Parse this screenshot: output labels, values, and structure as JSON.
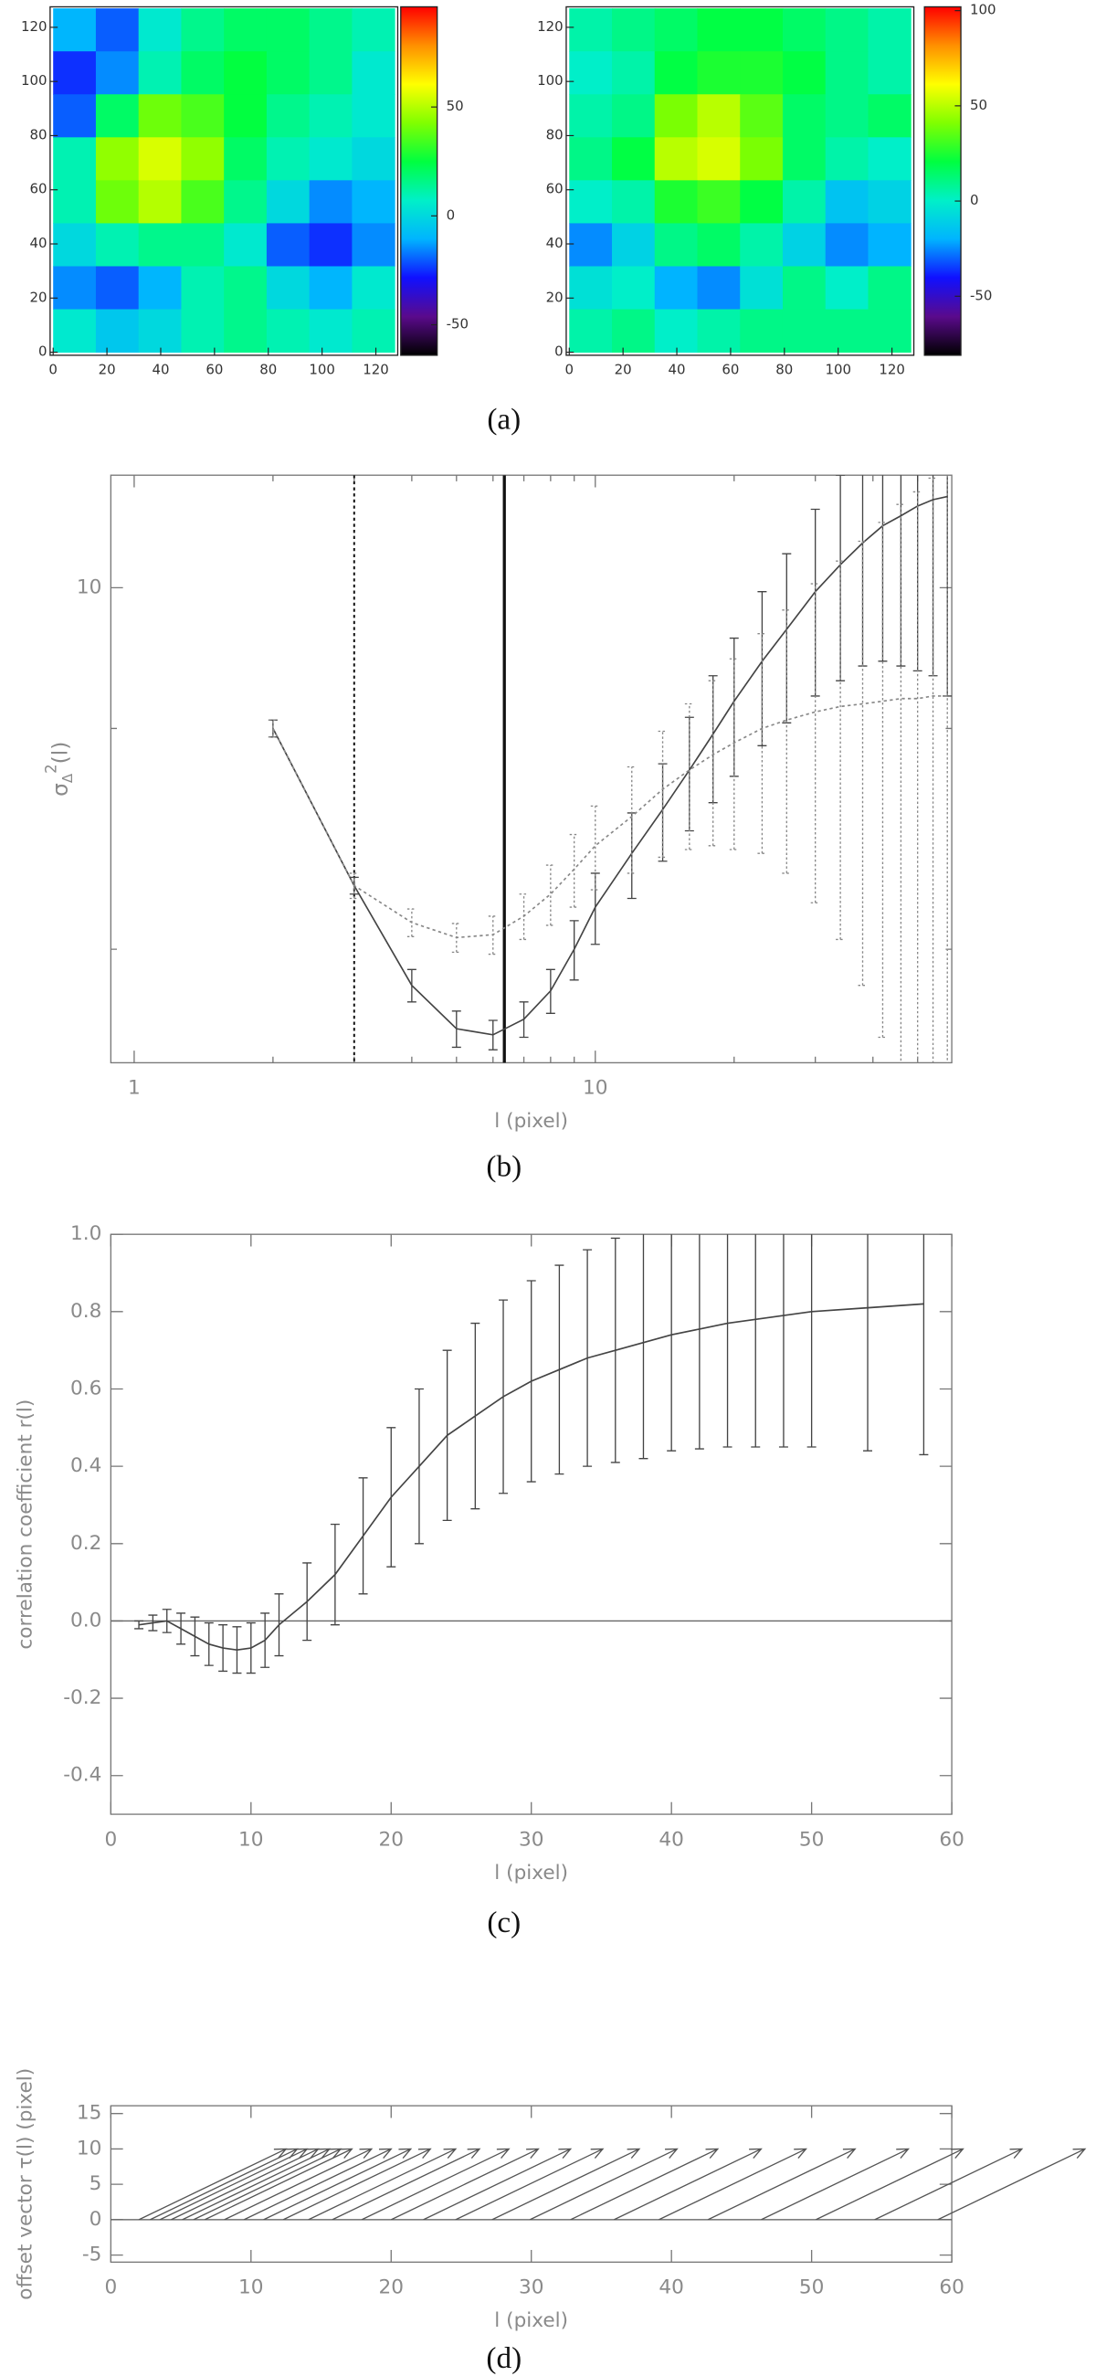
{
  "chart_data": [
    {
      "type": "heatmap",
      "caption": "(a)",
      "xlim": [
        0,
        127
      ],
      "ylim": [
        0,
        127
      ],
      "xticks": [
        0,
        20,
        40,
        60,
        80,
        100,
        120
      ],
      "yticks": [
        0,
        20,
        40,
        60,
        80,
        100,
        120
      ],
      "z": [
        [
          -10,
          -20,
          5,
          15,
          20,
          20,
          15,
          10
        ],
        [
          -25,
          -15,
          10,
          20,
          25,
          20,
          15,
          5
        ],
        [
          -20,
          20,
          40,
          35,
          25,
          15,
          10,
          5
        ],
        [
          10,
          45,
          55,
          45,
          20,
          10,
          5,
          0
        ],
        [
          10,
          40,
          50,
          35,
          15,
          0,
          -15,
          -10
        ],
        [
          0,
          10,
          15,
          15,
          5,
          -20,
          -25,
          -15
        ],
        [
          -15,
          -20,
          -10,
          10,
          15,
          0,
          -10,
          5
        ],
        [
          5,
          -5,
          0,
          10,
          15,
          10,
          5,
          10
        ]
      ],
      "clim": [
        -64,
        96
      ],
      "cticks": [
        -50,
        0,
        50
      ],
      "colormap": [
        "#000000",
        "#5a0a8c",
        "#1010ff",
        "#00b4ff",
        "#00f0c8",
        "#00ff40",
        "#80ff00",
        "#ffff00",
        "#ff9000",
        "#ff0000"
      ]
    },
    {
      "type": "heatmap",
      "xlim": [
        0,
        127
      ],
      "ylim": [
        0,
        127
      ],
      "xticks": [
        0,
        20,
        40,
        60,
        80,
        100,
        120
      ],
      "yticks": [
        0,
        20,
        40,
        60,
        80,
        100,
        120
      ],
      "z": [
        [
          5,
          10,
          15,
          20,
          20,
          15,
          10,
          5
        ],
        [
          0,
          5,
          20,
          25,
          25,
          20,
          10,
          5
        ],
        [
          5,
          10,
          40,
          50,
          35,
          15,
          10,
          15
        ],
        [
          10,
          20,
          50,
          55,
          40,
          15,
          5,
          0
        ],
        [
          0,
          5,
          25,
          30,
          20,
          5,
          -15,
          -10
        ],
        [
          -25,
          -10,
          10,
          15,
          5,
          -10,
          -25,
          -20
        ],
        [
          -5,
          0,
          -20,
          -25,
          -5,
          10,
          0,
          10
        ],
        [
          5,
          10,
          0,
          5,
          10,
          10,
          10,
          10
        ]
      ],
      "clim": [
        -81,
        102
      ],
      "cticks": [
        -50,
        0,
        50,
        100
      ],
      "colormap": [
        "#000000",
        "#5a0a8c",
        "#1010ff",
        "#00b4ff",
        "#00f0c8",
        "#00ff40",
        "#80ff00",
        "#ffff00",
        "#ff9000",
        "#ff0000"
      ]
    },
    {
      "type": "line",
      "caption": "(b)",
      "xscale": "log",
      "yscale": "log",
      "xlim": [
        0.89,
        59.3
      ],
      "ylim": [
        3.0,
        13.3
      ],
      "xticks": [
        1,
        10
      ],
      "xminor_ticks": [
        2,
        3,
        4,
        5,
        6,
        7,
        8,
        9,
        20,
        30,
        40,
        50
      ],
      "yticks": [
        10
      ],
      "yminor_ticks": [
        4,
        7
      ],
      "xlabel": "l (pixel)",
      "ylabel": {
        "base": "σ",
        "sub": "Δ",
        "sup": "2",
        "rest": "(l)"
      },
      "vlines": [
        {
          "x": 3,
          "style": "dotted"
        },
        {
          "x": 6.35,
          "style": "solid"
        }
      ],
      "x": [
        2,
        3,
        4,
        5,
        6,
        7,
        8,
        9,
        10,
        12,
        14,
        16,
        18,
        20,
        23,
        26,
        30,
        34,
        38,
        42,
        46,
        50,
        54,
        58
      ],
      "series": [
        {
          "style": "solid",
          "color": "#444444",
          "values": [
            7.0,
            4.7,
            3.65,
            3.27,
            3.22,
            3.35,
            3.6,
            4.0,
            4.45,
            5.1,
            5.7,
            6.3,
            6.9,
            7.5,
            8.3,
            9.0,
            9.9,
            10.6,
            11.2,
            11.7,
            12.0,
            12.3,
            12.5,
            12.6
          ],
          "errors": [
            0.15,
            0.1,
            0.15,
            0.15,
            0.12,
            0.15,
            0.2,
            0.3,
            0.4,
            0.55,
            0.7,
            0.9,
            1.1,
            1.3,
            1.6,
            1.9,
            2.3,
            2.7,
            3.0,
            3.4,
            3.8,
            4.2,
            4.5,
            5.0
          ]
        },
        {
          "style": "dotted",
          "color": "#888888",
          "values": [
            7.0,
            4.7,
            4.28,
            4.12,
            4.15,
            4.35,
            4.6,
            4.9,
            5.2,
            5.6,
            6.0,
            6.3,
            6.55,
            6.75,
            7.0,
            7.15,
            7.3,
            7.4,
            7.45,
            7.5,
            7.55,
            7.55,
            7.6,
            7.6
          ],
          "errors": [
            0.15,
            0.15,
            0.15,
            0.15,
            0.2,
            0.25,
            0.35,
            0.45,
            0.55,
            0.75,
            0.95,
            1.15,
            1.35,
            1.6,
            1.9,
            2.3,
            2.8,
            3.3,
            3.8,
            4.3,
            4.8,
            5.2,
            5.6,
            6.0
          ]
        }
      ]
    },
    {
      "type": "line",
      "caption": "(c)",
      "xlim": [
        0,
        60
      ],
      "ylim": [
        -0.5,
        1.0
      ],
      "xticks": [
        0,
        10,
        20,
        30,
        40,
        50,
        60
      ],
      "yticks": [
        -0.4,
        -0.2,
        {
          "value": 0,
          "label": "0.0"
        },
        0.2,
        0.4,
        0.6,
        0.8,
        {
          "value": 1,
          "label": "1.0"
        }
      ],
      "xlabel": "l (pixel)",
      "ylabel": "correlation coefficient r(l)",
      "hline": 0,
      "x": [
        2,
        3,
        4,
        5,
        6,
        7,
        8,
        9,
        10,
        11,
        12,
        14,
        16,
        18,
        20,
        22,
        24,
        26,
        28,
        30,
        32,
        34,
        36,
        38,
        40,
        42,
        44,
        46,
        48,
        50,
        54,
        58
      ],
      "series": [
        {
          "style": "solid",
          "color": "#444444",
          "values": [
            -0.01,
            -0.005,
            0,
            -0.02,
            -0.04,
            -0.06,
            -0.07,
            -0.075,
            -0.07,
            -0.05,
            -0.01,
            0.05,
            0.12,
            0.22,
            0.32,
            0.4,
            0.48,
            0.53,
            0.58,
            0.62,
            0.65,
            0.68,
            0.7,
            0.72,
            0.74,
            0.755,
            0.77,
            0.78,
            0.79,
            0.8,
            0.81,
            0.82
          ],
          "errors": [
            0.01,
            0.02,
            0.03,
            0.04,
            0.05,
            0.055,
            0.06,
            0.06,
            0.065,
            0.07,
            0.08,
            0.1,
            0.13,
            0.15,
            0.18,
            0.2,
            0.22,
            0.24,
            0.25,
            0.26,
            0.27,
            0.28,
            0.29,
            0.3,
            0.3,
            0.31,
            0.32,
            0.33,
            0.34,
            0.35,
            0.37,
            0.39
          ]
        }
      ]
    },
    {
      "type": "quiver",
      "caption": "(d)",
      "xlim": [
        0,
        60
      ],
      "ylim": [
        -6,
        16.1
      ],
      "xticks": [
        0,
        10,
        20,
        30,
        40,
        50,
        60
      ],
      "yticks": [
        -5,
        0,
        5,
        10,
        15
      ],
      "xlabel": "l (pixel)",
      "ylabel": "offset vector τ(l) (pixel)",
      "hline": 0,
      "x": [
        2,
        2.8,
        3.5,
        4.3,
        5.1,
        5.9,
        6.7,
        8.1,
        9.5,
        10.9,
        12.3,
        14.1,
        15.8,
        17.9,
        20,
        22.3,
        24.6,
        27.2,
        29.9,
        32.8,
        35.9,
        39.1,
        42.6,
        46.4,
        50.3,
        54.5,
        59
      ],
      "dx": [
        10.5,
        10.5,
        10.5,
        10.5,
        10.5,
        10.5,
        10.5,
        10.5,
        10.5,
        10.5,
        10.5,
        10.5,
        10.5,
        10.5,
        10.5,
        10.5,
        10.5,
        10.5,
        10.5,
        10.5,
        10.5,
        10.5,
        10.5,
        10.5,
        10.5,
        10.5,
        10.5
      ],
      "dy": [
        10,
        10,
        10,
        10,
        10,
        10,
        10,
        10,
        10,
        10,
        10,
        10,
        10,
        10,
        10,
        10,
        10,
        10,
        10,
        10,
        10,
        10,
        10,
        10,
        10,
        10,
        10
      ],
      "color": "#555555"
    }
  ]
}
